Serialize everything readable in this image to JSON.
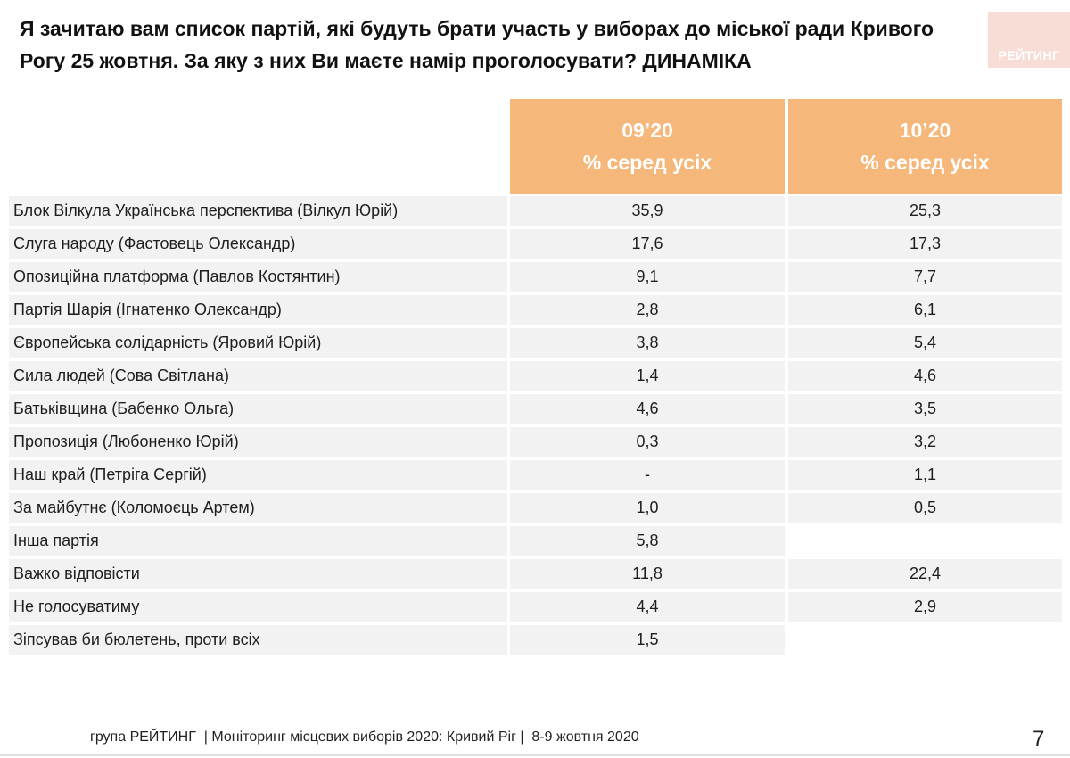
{
  "title": "Я зачитаю вам список партій, які будуть брати участь у виборах до міської ради Кривого Рогу 25 жовтня. За яку з них Ви маєте намір проголосувати? ДИНАМІКА",
  "logo": "РЕЙТИНГ",
  "columns": [
    {
      "period": "09’20",
      "measure": "% серед усіх"
    },
    {
      "period": "10’20",
      "measure": "% серед усіх"
    }
  ],
  "rows": [
    {
      "label": "Блок Вілкула Українська перспектива (Вілкул Юрій)",
      "v1": "35,9",
      "v2": "25,3"
    },
    {
      "label": "Слуга народу (Фастовець Олександр)",
      "v1": "17,6",
      "v2": "17,3"
    },
    {
      "label": "Опозиційна платформа (Павлов Костянтин)",
      "v1": "9,1",
      "v2": "7,7"
    },
    {
      "label": "Партія Шарія (Ігнатенко Олександр)",
      "v1": "2,8",
      "v2": "6,1"
    },
    {
      "label": "Європейська солідарність (Яровий Юрій)",
      "v1": "3,8",
      "v2": "5,4"
    },
    {
      "label": "Сила людей (Сова Світлана)",
      "v1": "1,4",
      "v2": "4,6"
    },
    {
      "label": "Батьківщина (Бабенко Ольга)",
      "v1": "4,6",
      "v2": "3,5"
    },
    {
      "label": "Пропозиція (Любоненко Юрій)",
      "v1": "0,3",
      "v2": "3,2"
    },
    {
      "label": "Наш край (Петріга Сергій)",
      "v1": "-",
      "v2": "1,1"
    },
    {
      "label": "За майбутнє (Коломоєць Артем)",
      "v1": "1,0",
      "v2": "0,5"
    },
    {
      "label": "Інша партія",
      "v1": "5,8",
      "v2": null
    },
    {
      "label": "Важко відповісти",
      "v1": "11,8",
      "v2": "22,4"
    },
    {
      "label": "Не голосуватиму",
      "v1": "4,4",
      "v2": "2,9"
    },
    {
      "label": "Зіпсував би бюлетень, проти всіх",
      "v1": "1,5",
      "v2": null
    }
  ],
  "footer": "група РЕЙТИНГ  | Моніторинг місцевих виборів 2020: Кривий Ріг |  8-9 жовтня 2020",
  "page_number": "7",
  "colors": {
    "header_bg": "#f5b87a",
    "row_bg": "#f2f2f2",
    "logo_bg": "#f8dcd6"
  }
}
